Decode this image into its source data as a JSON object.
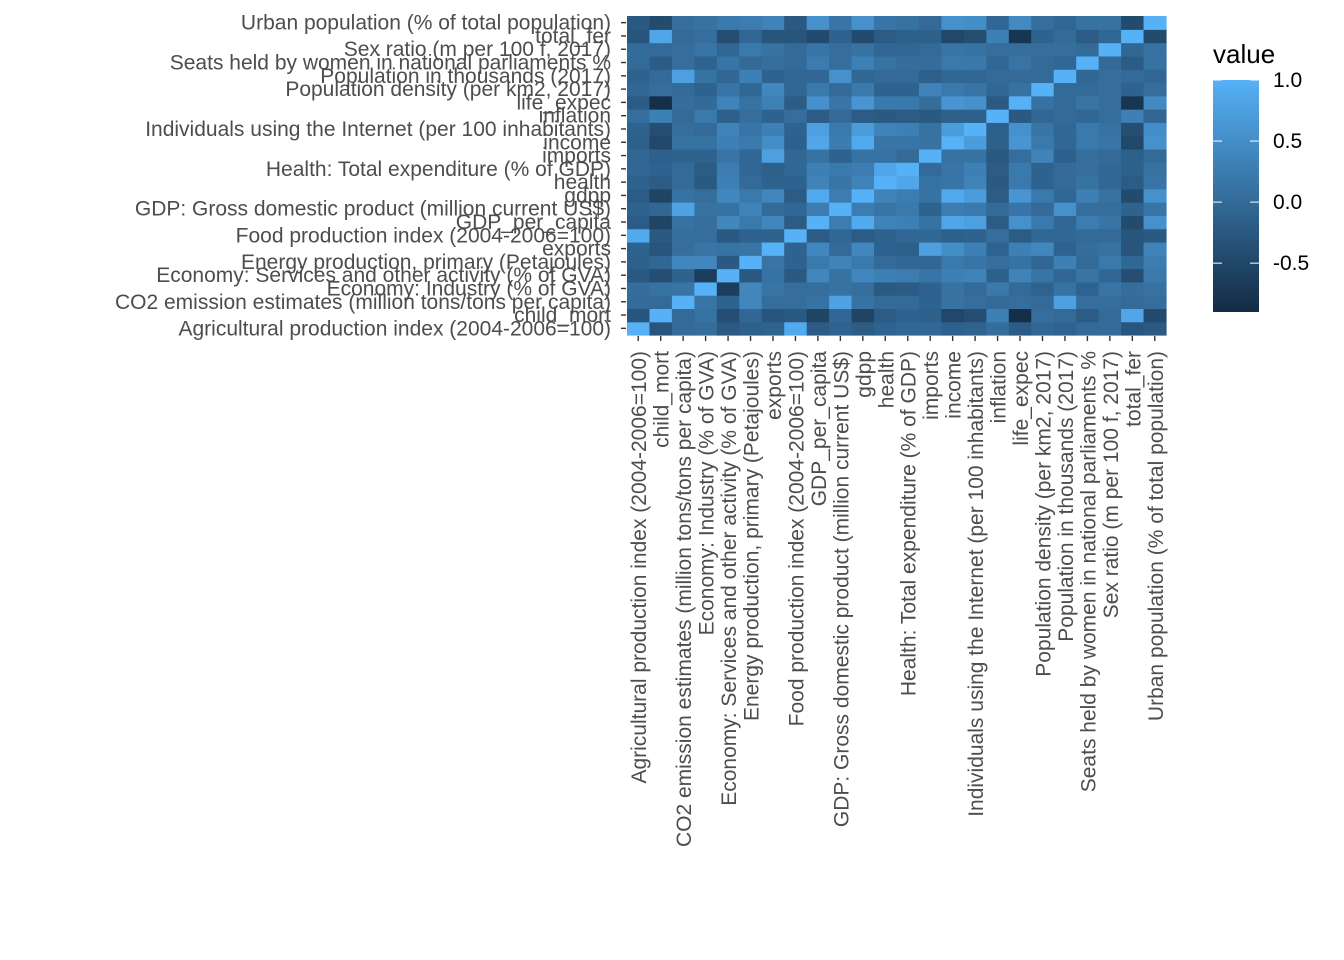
{
  "chart_data": {
    "type": "heatmap",
    "variables": [
      "Agricultural production index (2004-2006=100)",
      "child_mort",
      "CO2 emission estimates (million tons/tons per capita)",
      "Economy: Industry (% of GVA)",
      "Economy: Services and other activity (% of GVA)",
      "Energy production, primary (Petajoules)",
      "exports",
      "Food production index (2004-2006=100)",
      "GDP_per_capita",
      "GDP: Gross domestic product (million current US$)",
      "gdpp",
      "health",
      "Health: Total expenditure (% of GDP)",
      "imports",
      "income",
      "Individuals using the Internet (per 100 inhabitants)",
      "inflation",
      "life_expec",
      "Population density (per km2, 2017)",
      "Population in thousands (2017)",
      "Seats held by women in national parliaments %",
      "Sex ratio (m per 100 f, 2017)",
      "total_fer",
      "Urban population (% of total population)"
    ],
    "matrix": [
      [
        1.0,
        -0.3,
        0.02,
        0.05,
        -0.25,
        -0.15,
        -0.1,
        0.9,
        -0.2,
        -0.1,
        -0.2,
        -0.1,
        -0.05,
        -0.05,
        -0.15,
        -0.1,
        0.05,
        -0.2,
        -0.05,
        -0.1,
        0.0,
        0.02,
        -0.3,
        -0.25
      ],
      [
        -0.3,
        1.0,
        0.0,
        0.1,
        -0.4,
        -0.05,
        -0.3,
        -0.25,
        -0.55,
        -0.05,
        -0.55,
        -0.2,
        -0.1,
        -0.15,
        -0.5,
        -0.4,
        0.3,
        -0.85,
        0.05,
        0.0,
        -0.2,
        0.0,
        0.85,
        -0.45
      ],
      [
        0.02,
        0.0,
        1.0,
        0.15,
        -0.1,
        0.4,
        0.05,
        0.05,
        0.1,
        0.8,
        0.1,
        0.0,
        0.0,
        -0.1,
        0.1,
        0.05,
        0.0,
        0.05,
        0.0,
        0.75,
        0.05,
        0.05,
        0.0,
        0.05
      ],
      [
        0.05,
        0.1,
        0.15,
        1.0,
        -0.65,
        0.4,
        0.15,
        0.05,
        0.05,
        0.1,
        0.05,
        -0.25,
        -0.2,
        -0.1,
        0.1,
        0.0,
        0.2,
        0.0,
        -0.1,
        0.1,
        -0.1,
        0.15,
        0.05,
        0.1
      ],
      [
        -0.25,
        -0.4,
        -0.1,
        -0.65,
        1.0,
        -0.25,
        0.1,
        -0.25,
        0.4,
        0.1,
        0.4,
        0.3,
        0.25,
        0.15,
        0.3,
        0.35,
        -0.15,
        0.35,
        0.15,
        -0.05,
        0.15,
        -0.05,
        -0.4,
        0.2
      ],
      [
        -0.15,
        -0.05,
        0.4,
        0.4,
        -0.25,
        1.0,
        0.15,
        -0.1,
        0.2,
        0.35,
        0.2,
        0.0,
        -0.05,
        -0.05,
        0.2,
        0.15,
        0.05,
        0.1,
        -0.05,
        0.3,
        0.0,
        0.2,
        -0.05,
        0.25
      ],
      [
        -0.1,
        -0.3,
        0.05,
        0.15,
        0.1,
        0.15,
        1.0,
        -0.1,
        0.4,
        0.0,
        0.4,
        -0.1,
        -0.15,
        0.75,
        0.5,
        0.3,
        -0.1,
        0.3,
        0.4,
        -0.1,
        0.05,
        0.1,
        -0.3,
        0.35
      ],
      [
        0.9,
        -0.25,
        0.05,
        0.05,
        -0.25,
        -0.1,
        -0.1,
        1.0,
        -0.2,
        -0.05,
        -0.2,
        -0.1,
        -0.05,
        -0.05,
        -0.15,
        -0.1,
        0.05,
        -0.2,
        -0.05,
        -0.05,
        0.0,
        0.0,
        -0.3,
        -0.25
      ],
      [
        -0.2,
        -0.55,
        0.1,
        0.05,
        0.4,
        0.2,
        0.4,
        -0.2,
        1.0,
        0.25,
        0.9,
        0.35,
        0.3,
        0.1,
        0.85,
        0.75,
        -0.2,
        0.55,
        0.2,
        -0.05,
        0.25,
        0.15,
        -0.45,
        0.55
      ],
      [
        -0.1,
        -0.05,
        0.8,
        0.1,
        0.1,
        0.35,
        0.0,
        -0.05,
        0.25,
        1.0,
        0.25,
        0.15,
        0.2,
        -0.1,
        0.25,
        0.2,
        0.0,
        0.15,
        0.0,
        0.55,
        0.05,
        0.05,
        -0.1,
        0.15
      ],
      [
        -0.2,
        -0.55,
        0.1,
        0.05,
        0.4,
        0.2,
        0.4,
        -0.2,
        0.9,
        0.25,
        1.0,
        0.35,
        0.25,
        0.1,
        0.9,
        0.7,
        -0.2,
        0.6,
        0.2,
        -0.05,
        0.3,
        0.1,
        -0.45,
        0.55
      ],
      [
        -0.1,
        -0.2,
        0.0,
        -0.25,
        0.3,
        0.0,
        -0.1,
        -0.1,
        0.35,
        0.15,
        0.35,
        1.0,
        0.85,
        0.1,
        0.15,
        0.35,
        -0.25,
        0.2,
        -0.1,
        0.0,
        0.1,
        -0.05,
        -0.2,
        0.15
      ],
      [
        -0.05,
        -0.1,
        0.0,
        -0.2,
        0.25,
        -0.05,
        -0.15,
        -0.05,
        0.3,
        0.2,
        0.25,
        0.85,
        1.0,
        0.0,
        0.15,
        0.3,
        -0.2,
        0.2,
        -0.1,
        0.0,
        0.05,
        -0.05,
        -0.15,
        0.1
      ],
      [
        -0.05,
        -0.15,
        -0.1,
        -0.1,
        0.15,
        -0.05,
        0.75,
        -0.05,
        0.1,
        -0.1,
        0.1,
        0.1,
        0.0,
        1.0,
        0.1,
        0.1,
        -0.25,
        0.05,
        0.35,
        -0.15,
        0.05,
        0.0,
        -0.15,
        0.0
      ],
      [
        -0.15,
        -0.5,
        0.1,
        0.1,
        0.3,
        0.2,
        0.5,
        -0.15,
        0.85,
        0.25,
        0.9,
        0.15,
        0.15,
        0.1,
        1.0,
        0.7,
        -0.15,
        0.6,
        0.2,
        -0.05,
        0.2,
        0.15,
        -0.5,
        0.55
      ],
      [
        -0.1,
        -0.4,
        0.05,
        0.0,
        0.35,
        0.15,
        0.3,
        -0.1,
        0.75,
        0.2,
        0.7,
        0.35,
        0.3,
        0.1,
        0.7,
        1.0,
        -0.15,
        0.55,
        0.15,
        -0.05,
        0.2,
        0.1,
        -0.4,
        0.5
      ],
      [
        0.05,
        0.3,
        0.0,
        0.2,
        -0.15,
        0.05,
        -0.1,
        0.05,
        -0.2,
        0.0,
        -0.2,
        -0.25,
        -0.2,
        -0.25,
        -0.15,
        -0.15,
        1.0,
        -0.25,
        -0.05,
        0.0,
        -0.05,
        0.05,
        0.3,
        -0.05
      ],
      [
        -0.2,
        -0.85,
        0.05,
        0.0,
        0.35,
        0.1,
        0.3,
        -0.2,
        0.55,
        0.15,
        0.6,
        0.2,
        0.2,
        0.05,
        0.6,
        0.55,
        -0.25,
        1.0,
        0.1,
        0.0,
        0.15,
        0.05,
        -0.75,
        0.45
      ],
      [
        -0.05,
        0.05,
        0.0,
        -0.1,
        0.15,
        -0.05,
        0.4,
        -0.05,
        0.2,
        0.0,
        0.2,
        -0.1,
        -0.1,
        0.35,
        0.2,
        0.15,
        -0.05,
        0.1,
        1.0,
        0.0,
        0.0,
        0.05,
        -0.1,
        0.05
      ],
      [
        -0.1,
        0.0,
        0.75,
        0.1,
        -0.05,
        0.3,
        -0.1,
        -0.05,
        -0.05,
        0.55,
        -0.05,
        0.0,
        0.0,
        -0.15,
        -0.05,
        -0.05,
        0.0,
        0.0,
        0.0,
        1.0,
        -0.05,
        0.05,
        0.0,
        -0.05
      ],
      [
        0.0,
        -0.2,
        0.05,
        -0.1,
        0.15,
        0.0,
        0.05,
        0.0,
        0.25,
        0.05,
        0.3,
        0.1,
        0.05,
        0.05,
        0.2,
        0.2,
        -0.05,
        0.15,
        0.0,
        -0.05,
        1.0,
        0.0,
        -0.2,
        0.1
      ],
      [
        0.02,
        0.0,
        0.05,
        0.15,
        -0.05,
        0.2,
        0.1,
        0.0,
        0.15,
        0.05,
        0.1,
        -0.05,
        -0.05,
        0.0,
        0.15,
        0.1,
        0.05,
        0.05,
        0.05,
        0.05,
        0.0,
        1.0,
        -0.05,
        0.1
      ],
      [
        -0.3,
        0.85,
        0.0,
        0.05,
        -0.4,
        -0.05,
        -0.3,
        -0.3,
        -0.45,
        -0.1,
        -0.45,
        -0.2,
        -0.15,
        -0.15,
        -0.5,
        -0.4,
        0.3,
        -0.75,
        -0.1,
        0.0,
        -0.2,
        -0.05,
        1.0,
        -0.45
      ],
      [
        -0.25,
        -0.45,
        0.05,
        0.1,
        0.2,
        0.25,
        0.35,
        -0.25,
        0.55,
        0.15,
        0.55,
        0.15,
        0.1,
        0.0,
        0.55,
        0.5,
        -0.05,
        0.45,
        0.05,
        -0.05,
        0.1,
        0.1,
        -0.45,
        1.0
      ]
    ],
    "legend": {
      "title": "value",
      "ticks": [
        1.0,
        0.5,
        0.0,
        -0.5
      ],
      "tick_labels": [
        "1.0",
        "0.5",
        "0.0",
        "-0.5"
      ],
      "range": [
        -0.9,
        1.0
      ],
      "low_color": "#132B43",
      "high_color": "#56B1F7"
    }
  }
}
